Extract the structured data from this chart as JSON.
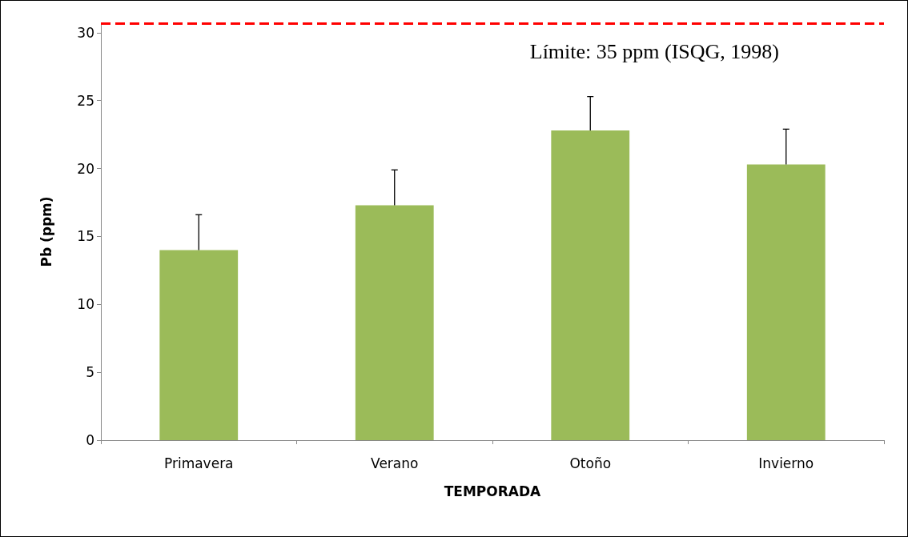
{
  "chart_data": {
    "type": "bar",
    "xlabel": "TEMPORADA",
    "ylabel": "Pb (ppm)",
    "categories": [
      "Primavera",
      "Verano",
      "Otoño",
      "Invierno"
    ],
    "values": [
      14.0,
      17.3,
      22.8,
      20.3
    ],
    "color": "#9bbb59",
    "errors": [
      [
        14.0,
        16.6
      ],
      [
        17.3,
        19.9
      ],
      [
        22.8,
        25.3
      ],
      [
        20.3,
        22.9
      ]
    ],
    "ylim": [
      0,
      30.7
    ],
    "yticks": [
      0,
      5,
      10,
      15,
      20,
      25,
      30
    ],
    "grid": false,
    "annotations": [
      "Límite: 35 ppm (ISQG, 1998)"
    ],
    "ref_lines": [
      {
        "axis": "y",
        "value": 30.7,
        "color": "#ff0000",
        "line_style": "dashed"
      }
    ]
  }
}
